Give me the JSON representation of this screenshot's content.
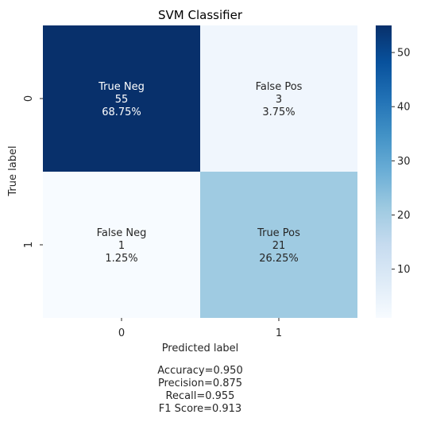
{
  "chart_data": {
    "type": "heatmap",
    "title": "SVM Classifier",
    "xlabel": "Predicted label",
    "ylabel": "True label",
    "x_tick_labels": [
      "0",
      "1"
    ],
    "y_tick_labels": [
      "0",
      "1"
    ],
    "cells": [
      [
        {
          "row": 0,
          "col": 0,
          "label": "True Neg",
          "count": 55,
          "count_text": "55",
          "percent_text": "68.75%"
        },
        {
          "row": 0,
          "col": 1,
          "label": "False Pos",
          "count": 3,
          "count_text": "3",
          "percent_text": "3.75%"
        }
      ],
      [
        {
          "row": 1,
          "col": 0,
          "label": "False Neg",
          "count": 1,
          "count_text": "1",
          "percent_text": "1.25%"
        },
        {
          "row": 1,
          "col": 1,
          "label": "True Pos",
          "count": 21,
          "count_text": "21",
          "percent_text": "26.25%"
        }
      ]
    ],
    "colormap": "Blues",
    "color_range": [
      1,
      55
    ],
    "colorbar_ticks": [
      "10",
      "20",
      "30",
      "40",
      "50"
    ],
    "colorbar_tick_values": [
      10,
      20,
      30,
      40,
      50
    ],
    "light_text_color": "#ffffff",
    "dark_text_color": "#262626"
  },
  "metrics": [
    {
      "text": "Accuracy=0.950"
    },
    {
      "text": "Precision=0.875"
    },
    {
      "text": "Recall=0.955"
    },
    {
      "text": "F1 Score=0.913"
    }
  ]
}
